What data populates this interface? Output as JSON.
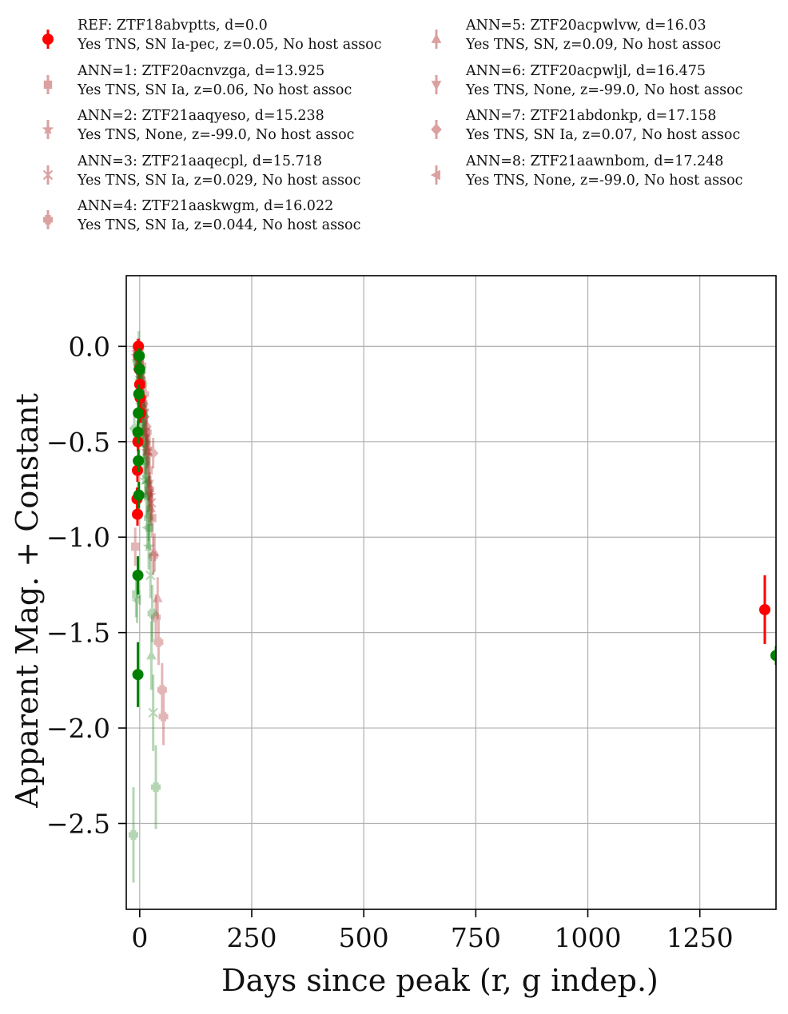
{
  "chart_data": {
    "type": "scatter",
    "title": "",
    "xlabel": "Days since peak (r, g indep.)",
    "ylabel": "Apparent Mag. + Constant",
    "xlim": [
      -30,
      1420
    ],
    "ylim": [
      0.37,
      -2.95
    ],
    "x_ticks": [
      0,
      250,
      500,
      750,
      1000,
      1250
    ],
    "x_tick_labels": [
      "0",
      "250",
      "500",
      "750",
      "1000",
      "1250"
    ],
    "y_ticks": [
      0.0,
      -0.5,
      -1.0,
      -1.5,
      -2.0,
      -2.5
    ],
    "y_tick_labels": [
      "0.0",
      "−0.5",
      "−1.0",
      "−1.5",
      "−2.0",
      "−2.5"
    ],
    "grid": true,
    "legend_position": "top (above plot), two columns",
    "colors": {
      "r_band": "#ff0000",
      "g_band": "#008000",
      "ann_r": "#b03030",
      "ann_g": "#2e8b2e"
    },
    "series": [
      {
        "label_line1": "REF: ZTF18abvptts, d=0.0",
        "label_line2": "Yes TNS, SN Ia-pec, z=0.05, No host assoc",
        "marker": "circle",
        "alpha": 1.0,
        "r": [
          [
            -3,
            0.0,
            0.04
          ],
          [
            -2,
            -0.05,
            0.04
          ],
          [
            -1,
            -0.12,
            0.05
          ],
          [
            0,
            -0.2,
            0.05
          ],
          [
            1,
            -0.27,
            0.05
          ],
          [
            2,
            -0.35,
            0.05
          ],
          [
            -4,
            -0.5,
            0.05
          ],
          [
            -5,
            -0.65,
            0.06
          ],
          [
            -6,
            -0.8,
            0.06
          ],
          [
            -5,
            -0.88,
            0.06
          ],
          [
            1395,
            -1.38,
            0.18
          ]
        ],
        "g": [
          [
            -1,
            -0.05,
            0.04
          ],
          [
            0,
            -0.12,
            0.05
          ],
          [
            -2,
            -0.25,
            0.05
          ],
          [
            -3,
            -0.35,
            0.06
          ],
          [
            -4,
            -0.45,
            0.06
          ],
          [
            -3,
            -0.6,
            0.06
          ],
          [
            -2,
            -0.78,
            0.07
          ],
          [
            -4,
            -1.2,
            0.1
          ],
          [
            -4,
            -1.72,
            0.17
          ],
          [
            1420,
            -1.62,
            0.05
          ]
        ]
      },
      {
        "label_line1": "ANN=1: ZTF20acnvzga, d=13.925",
        "label_line2": "Yes TNS, SN Ia, z=0.06, No host assoc",
        "marker": "square",
        "alpha": 0.35,
        "r": [
          [
            -5,
            -0.02,
            0.06
          ],
          [
            0,
            -0.08,
            0.06
          ],
          [
            4,
            -0.18,
            0.07
          ],
          [
            8,
            -0.3,
            0.07
          ],
          [
            14,
            -0.45,
            0.08
          ],
          [
            20,
            -0.65,
            0.09
          ],
          [
            28,
            -0.9,
            0.1
          ],
          [
            -10,
            -1.05,
            0.1
          ]
        ],
        "g": [
          [
            -4,
            -0.05,
            0.07
          ],
          [
            2,
            -0.15,
            0.07
          ],
          [
            8,
            -0.35,
            0.08
          ],
          [
            14,
            -0.6,
            0.1
          ],
          [
            22,
            -0.95,
            0.12
          ],
          [
            -8,
            -1.3,
            0.12
          ]
        ]
      },
      {
        "label_line1": "ANN=2: ZTF21aaqyeso, d=15.238",
        "label_line2": "Yes TNS, None, z=-99.0, No host assoc",
        "marker": "star",
        "alpha": 0.35,
        "r": [
          [
            -8,
            -0.05,
            0.06
          ],
          [
            -3,
            -0.1,
            0.06
          ],
          [
            3,
            -0.22,
            0.07
          ],
          [
            9,
            -0.38,
            0.08
          ],
          [
            16,
            -0.55,
            0.09
          ],
          [
            24,
            -0.78,
            0.1
          ]
        ],
        "g": [
          [
            -6,
            -0.08,
            0.07
          ],
          [
            0,
            -0.18,
            0.07
          ],
          [
            6,
            -0.4,
            0.08
          ],
          [
            12,
            -0.7,
            0.1
          ],
          [
            20,
            -1.05,
            0.12
          ]
        ]
      },
      {
        "label_line1": "ANN=3: ZTF21aaqecpl, d=15.718",
        "label_line2": "Yes TNS, SN Ia, z=0.029, No host assoc",
        "marker": "x",
        "alpha": 0.35,
        "r": [
          [
            -6,
            -0.03,
            0.05
          ],
          [
            -1,
            -0.09,
            0.05
          ],
          [
            5,
            -0.2,
            0.06
          ],
          [
            11,
            -0.35,
            0.07
          ],
          [
            18,
            -0.55,
            0.08
          ],
          [
            26,
            -0.82,
            0.09
          ]
        ],
        "g": [
          [
            -5,
            -0.06,
            0.06
          ],
          [
            1,
            -0.16,
            0.06
          ],
          [
            7,
            -0.38,
            0.07
          ],
          [
            15,
            -0.7,
            0.09
          ],
          [
            24,
            -1.2,
            0.12
          ],
          [
            30,
            -1.92,
            0.2
          ]
        ]
      },
      {
        "label_line1": "ANN=4: ZTF21aaskwgm, d=16.022",
        "label_line2": "Yes TNS, SN Ia, z=0.044, No host assoc",
        "marker": "plus",
        "alpha": 0.35,
        "r": [
          [
            -2,
            -0.02,
            0.06
          ],
          [
            4,
            -0.1,
            0.06
          ],
          [
            10,
            -0.25,
            0.07
          ],
          [
            16,
            -0.45,
            0.08
          ],
          [
            22,
            -0.75,
            0.09
          ],
          [
            30,
            -1.1,
            0.1
          ],
          [
            36,
            -1.42,
            0.12
          ],
          [
            42,
            -1.55,
            0.12
          ],
          [
            50,
            -1.8,
            0.14
          ],
          [
            53,
            -1.94,
            0.15
          ]
        ],
        "g": [
          [
            -14,
            -2.56,
            0.25
          ],
          [
            0,
            -0.05,
            0.07
          ],
          [
            6,
            -0.2,
            0.08
          ],
          [
            12,
            -0.5,
            0.1
          ],
          [
            20,
            -0.9,
            0.12
          ],
          [
            28,
            -1.4,
            0.15
          ],
          [
            36,
            -2.31,
            0.22
          ]
        ]
      },
      {
        "label_line1": "ANN=5: ZTF20acpwlvw, d=16.03",
        "label_line2": "Yes TNS, SN, z=0.09, No host assoc",
        "marker": "triangle-up",
        "alpha": 0.35,
        "r": [
          [
            -3,
            -0.05,
            0.06
          ],
          [
            3,
            -0.15,
            0.06
          ],
          [
            9,
            -0.32,
            0.07
          ],
          [
            17,
            -0.55,
            0.08
          ],
          [
            25,
            -0.85,
            0.09
          ],
          [
            33,
            -1.08,
            0.1
          ],
          [
            40,
            -1.32,
            0.11
          ]
        ],
        "g": [
          [
            -2,
            -0.02,
            0.1
          ],
          [
            4,
            -0.12,
            0.08
          ],
          [
            10,
            -0.35,
            0.09
          ],
          [
            18,
            -0.7,
            0.1
          ],
          [
            26,
            -1.62,
            0.18
          ]
        ]
      },
      {
        "label_line1": "ANN=6: ZTF20acpwljl, d=16.475",
        "label_line2": "Yes TNS, None, z=-99.0, No host assoc",
        "marker": "triangle-down",
        "alpha": 0.35,
        "r": [
          [
            -7,
            -0.04,
            0.06
          ],
          [
            -1,
            -0.12,
            0.06
          ],
          [
            6,
            -0.28,
            0.07
          ],
          [
            13,
            -0.48,
            0.08
          ],
          [
            21,
            -0.72,
            0.09
          ]
        ],
        "g": [
          [
            -6,
            -0.1,
            0.07
          ],
          [
            0,
            -0.22,
            0.07
          ],
          [
            7,
            -0.45,
            0.08
          ],
          [
            15,
            -0.8,
            0.1
          ]
        ]
      },
      {
        "label_line1": "ANN=7: ZTF21abdonkp, d=17.158",
        "label_line2": "Yes TNS, SN Ia, z=0.07, No host assoc",
        "marker": "diamond",
        "alpha": 0.35,
        "r": [
          [
            -4,
            -0.06,
            0.06
          ],
          [
            2,
            -0.14,
            0.06
          ],
          [
            8,
            -0.3,
            0.07
          ],
          [
            15,
            -0.42,
            0.08
          ],
          [
            22,
            -0.55,
            0.08
          ],
          [
            30,
            -0.56,
            0.08
          ]
        ],
        "g": [
          [
            -12,
            -0.43,
            0.07
          ],
          [
            -3,
            -0.1,
            0.07
          ],
          [
            3,
            -0.28,
            0.08
          ],
          [
            10,
            -0.5,
            0.09
          ],
          [
            18,
            -0.78,
            0.1
          ]
        ]
      },
      {
        "label_line1": "ANN=8: ZTF21aawnbom, d=17.248",
        "label_line2": "Yes TNS, None, z=-99.0, No host assoc",
        "marker": "triangle-left",
        "alpha": 0.35,
        "r": [
          [
            -5,
            -0.07,
            0.06
          ],
          [
            1,
            -0.16,
            0.06
          ],
          [
            7,
            -0.33,
            0.07
          ],
          [
            14,
            -0.52,
            0.08
          ],
          [
            21,
            -0.77,
            0.09
          ]
        ],
        "g": [
          [
            -4,
            -0.12,
            0.07
          ],
          [
            2,
            -0.3,
            0.08
          ],
          [
            -6,
            -1.33,
            0.12
          ],
          [
            9,
            -0.6,
            0.09
          ],
          [
            17,
            -0.95,
            0.11
          ]
        ]
      }
    ]
  }
}
